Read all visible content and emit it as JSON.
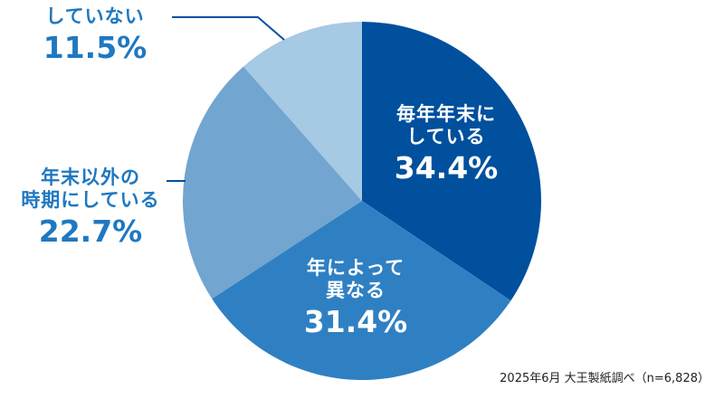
{
  "chart_data": {
    "type": "pie",
    "title": "",
    "start_angle_deg": 0,
    "direction": "clockwise",
    "slices": [
      {
        "label": "毎年年末にしている",
        "label_lines": [
          "毎年年末に",
          "している"
        ],
        "value": 34.4,
        "value_label": "34.4%",
        "color": "#00509e",
        "label_position": "inside"
      },
      {
        "label": "年によって異なる",
        "label_lines": [
          "年によって",
          "異なる"
        ],
        "value": 31.4,
        "value_label": "31.4%",
        "color": "#2f80c3",
        "label_position": "inside"
      },
      {
        "label": "年末以外の時期にしている",
        "label_lines": [
          "年末以外の",
          "時期にしている"
        ],
        "value": 22.7,
        "value_label": "22.7%",
        "color": "#72a5cf",
        "label_position": "outside"
      },
      {
        "label": "していない",
        "label_lines": [
          "していない"
        ],
        "value": 11.5,
        "value_label": "11.5%",
        "color": "#a6c9e4",
        "label_position": "outside"
      }
    ],
    "source_note": "2025年6月 大王製紙調べ（n=6,828）"
  },
  "labels": {
    "s0": {
      "line1": "毎年年末に",
      "line2": "している",
      "pct": "34.4%"
    },
    "s1": {
      "line1": "年によって",
      "line2": "異なる",
      "pct": "31.4%"
    },
    "s2": {
      "line1": "年末以外の",
      "line2": "時期にしている",
      "pct": "22.7%"
    },
    "s3": {
      "line1": "していない",
      "pct": "11.5%"
    }
  },
  "source": "2025年6月 大王製紙調べ（n=6,828）",
  "colors": {
    "leader_line": "#00509e",
    "outside_text": "#1f78c1"
  }
}
